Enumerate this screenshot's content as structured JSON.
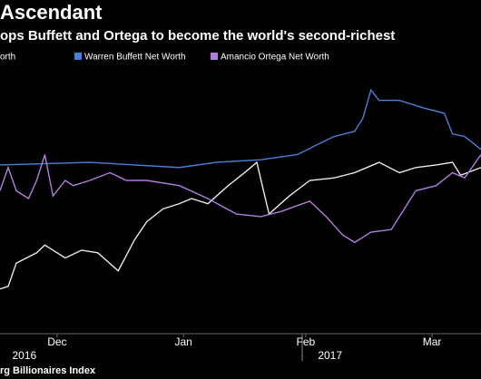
{
  "chart_data": {
    "type": "line",
    "title": "Ascendant",
    "subtitle": "ops Buffett and Ortega to become the world's second-richest",
    "source": "rg Billionaires Index",
    "xlim": [
      0,
      118
    ],
    "ylim": [
      0,
      100
    ],
    "xticks": [
      {
        "value": 14,
        "label": "Dec"
      },
      {
        "value": 45,
        "label": "Jan"
      },
      {
        "value": 75,
        "label": "Feb"
      },
      {
        "value": 106,
        "label": "Mar"
      }
    ],
    "year_labels": [
      {
        "text": "2016",
        "x": 3
      },
      {
        "text": "2017",
        "x": 78
      }
    ],
    "series": [
      {
        "name": "orth",
        "color": "#e8e8e8",
        "x": [
          0,
          2,
          4,
          9,
          11,
          16,
          20,
          24,
          29,
          33,
          36,
          40,
          44,
          47,
          51,
          56,
          60,
          63,
          66,
          71,
          76,
          82,
          87,
          93,
          98,
          102,
          107,
          111,
          113,
          118
        ],
        "values": [
          18,
          19,
          28,
          32,
          35,
          30,
          33,
          32,
          25,
          37,
          44,
          49,
          51,
          53,
          51,
          58,
          63,
          67,
          47,
          54,
          60,
          61,
          63,
          67,
          63,
          65,
          66,
          67,
          62,
          65
        ]
      },
      {
        "name": "Warren Buffett Net Worth",
        "color": "#4a7fd6",
        "x": [
          0,
          22,
          33,
          44,
          53,
          64,
          73,
          78,
          82,
          87,
          89,
          91,
          93,
          98,
          104,
          109,
          111,
          114,
          118
        ],
        "values": [
          66,
          67,
          66,
          65,
          67,
          68,
          70,
          74,
          77,
          79,
          84,
          95,
          91,
          91,
          88,
          86,
          78,
          77,
          72
        ]
      },
      {
        "name": "Amancio Ortega Net Worth",
        "color": "#b07de0",
        "x": [
          0,
          2,
          4,
          7,
          9,
          11,
          13,
          16,
          18,
          22,
          27,
          31,
          36,
          44,
          51,
          58,
          64,
          69,
          76,
          80,
          84,
          87,
          91,
          96,
          100,
          102,
          107,
          111,
          114,
          118
        ],
        "values": [
          56,
          65,
          56,
          53,
          60,
          70,
          54,
          60,
          58,
          60,
          63,
          60,
          60,
          58,
          53,
          47,
          46,
          48,
          52,
          46,
          39,
          36,
          40,
          41,
          51,
          56,
          58,
          63,
          61,
          70
        ]
      }
    ]
  }
}
